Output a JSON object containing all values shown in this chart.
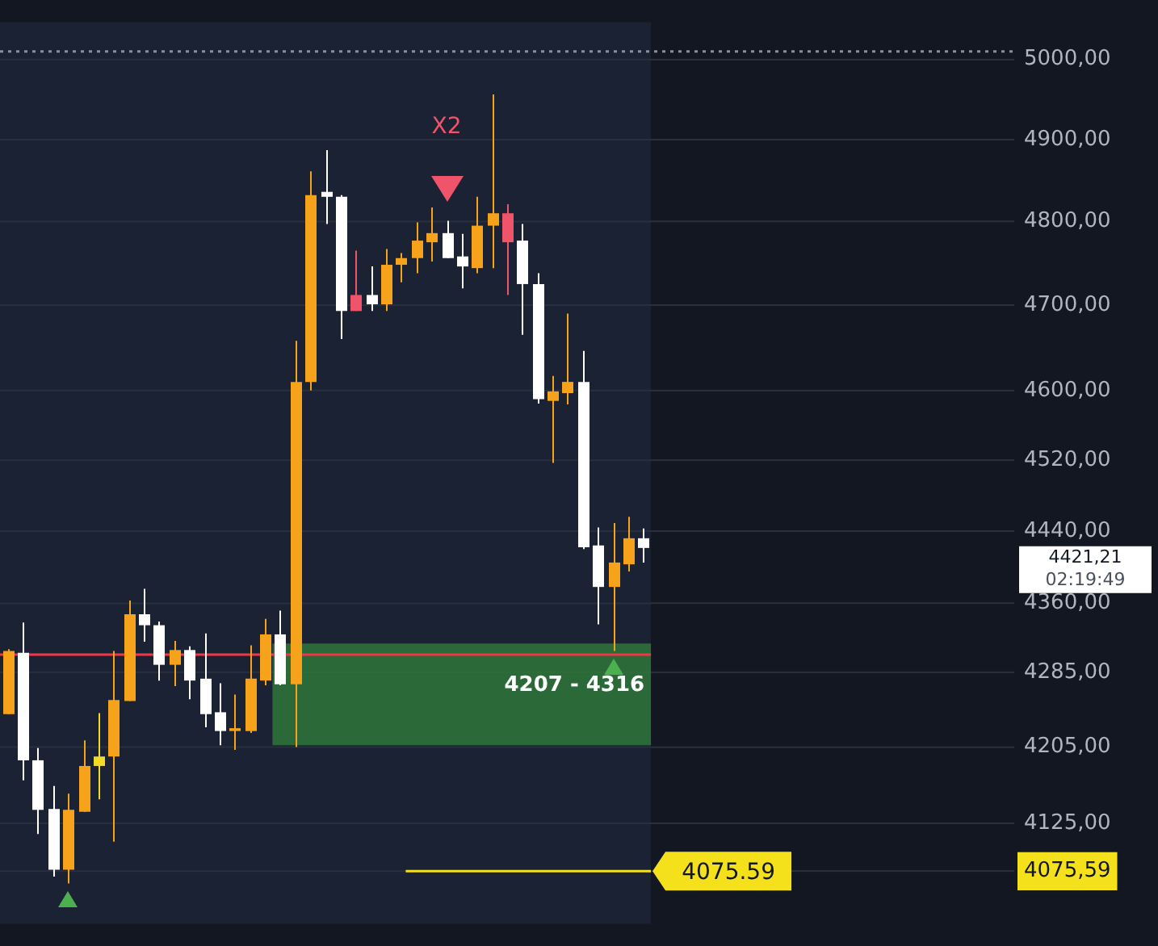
{
  "chart_data": {
    "type": "candlestick",
    "log": true,
    "grid": "y",
    "tick_labels": "y",
    "categories": [
      null,
      null,
      null,
      null,
      null,
      null,
      null,
      null,
      null,
      null,
      null,
      null,
      null,
      null,
      null,
      null,
      null,
      null,
      null,
      null,
      null,
      null,
      null,
      null,
      null,
      null,
      null,
      null,
      null,
      null,
      null,
      null,
      null,
      null,
      null,
      null,
      null,
      null,
      null,
      null,
      null,
      null,
      null,
      null,
      null,
      null,
      null,
      null,
      null,
      null,
      null,
      null,
      null,
      null,
      null,
      null,
      null,
      null,
      null,
      null,
      null,
      null,
      null,
      null,
      null,
      null,
      null
    ],
    "ohlc": [
      [
        4240,
        4310,
        4240,
        4308
      ],
      [
        4306,
        4339,
        4170,
        4191
      ],
      [
        4191,
        4204,
        4114,
        4139
      ],
      [
        4140,
        4164,
        4070,
        4077
      ],
      [
        4077,
        4156,
        4063,
        4139
      ],
      [
        4137,
        4212,
        4137,
        4185
      ],
      [
        4185,
        4241,
        4150,
        4195
      ],
      [
        4195,
        4308,
        4106,
        4255
      ],
      [
        4254,
        4363,
        4254,
        4348
      ],
      [
        4348,
        4376,
        4318,
        4336
      ],
      [
        4336,
        4340,
        4276,
        4293
      ],
      [
        4293,
        4319,
        4270,
        4309
      ],
      [
        4309,
        4313,
        4256,
        4276
      ],
      [
        4278,
        4327,
        4226,
        4240
      ],
      [
        4242,
        4273,
        4207,
        4222
      ],
      [
        4222,
        4261,
        4202,
        4225
      ],
      [
        4222,
        4314,
        4220,
        4278
      ],
      [
        4276,
        4343,
        4271,
        4326
      ],
      [
        4326,
        4352,
        4271,
        4272
      ],
      [
        4272,
        4658,
        4205,
        4610
      ],
      [
        4610,
        4861,
        4600,
        4832
      ],
      [
        4836,
        4887,
        4797,
        4830
      ],
      [
        4830,
        4832,
        4660,
        4693
      ],
      [
        4712,
        4765,
        4693,
        4693
      ],
      [
        4712,
        4746,
        4693,
        4701
      ],
      [
        4701,
        4767,
        4693,
        4748
      ],
      [
        4748,
        4762,
        4727,
        4756
      ],
      [
        4756,
        4799,
        4738,
        4777
      ],
      [
        4775,
        4817,
        4752,
        4786
      ],
      [
        4786,
        4801,
        4756,
        4756
      ],
      [
        4758,
        4785,
        4720,
        4746
      ],
      [
        4744,
        4830,
        4738,
        4795
      ],
      [
        4795,
        4956,
        4744,
        4810
      ],
      [
        4810,
        4821,
        4712,
        4775
      ],
      [
        4777,
        4797,
        4665,
        4725
      ],
      [
        4725,
        4738,
        4585,
        4590
      ],
      [
        4588,
        4617,
        4517,
        4599
      ],
      [
        4597,
        4690,
        4584,
        4610
      ],
      [
        4610,
        4646,
        4420,
        4422
      ],
      [
        4424,
        4444,
        4337,
        4378
      ],
      [
        4378,
        4449,
        4308,
        4405
      ],
      [
        4403,
        4456,
        4395,
        4432
      ],
      [
        4432,
        4443,
        4405,
        4421.21
      ],
      null,
      null,
      null,
      null,
      null,
      null,
      null,
      null,
      null,
      null,
      null,
      null,
      null,
      null,
      null,
      null,
      null,
      null,
      null,
      null,
      null,
      null,
      null,
      null
    ],
    "colors": [
      "#f7a21b",
      "#ffffff",
      "#ffffff",
      "#ffffff",
      "#f7a21b",
      "#f7a21b",
      "#f3d92a",
      "#f7a21b",
      "#f7a21b",
      "#ffffff",
      "#ffffff",
      "#f7a21b",
      "#ffffff",
      "#ffffff",
      "#ffffff",
      "#f7a21b",
      "#f7a21b",
      "#f7a21b",
      "#ffffff",
      "#f7a21b",
      "#f7a21b",
      "#ffffff",
      "#ffffff",
      "#f0546a",
      "#ffffff",
      "#f7a21b",
      "#f7a21b",
      "#f7a21b",
      "#f7a21b",
      "#ffffff",
      "#ffffff",
      "#f7a21b",
      "#f7a21b",
      "#f0546a",
      "#ffffff",
      "#ffffff",
      "#f7a21b",
      "#f7a21b",
      "#ffffff",
      "#ffffff",
      "#f7a21b",
      "#f7a21b",
      "#ffffff",
      null,
      null,
      null,
      null,
      null,
      null,
      null,
      null,
      null,
      null,
      null,
      null,
      null,
      null,
      null,
      null,
      null,
      null,
      null,
      null,
      null,
      null,
      null,
      null
    ],
    "ylim": [
      4022,
      5047
    ],
    "yticks": [
      {
        "value": 4075.59,
        "label": "4075,59"
      },
      {
        "value": 4125,
        "label": "4125,00"
      },
      {
        "value": 4205,
        "label": "4205,00"
      },
      {
        "value": 4285,
        "label": "4285,00"
      },
      {
        "value": 4360,
        "label": "4360,00"
      },
      {
        "value": 4440,
        "label": "4440,00"
      },
      {
        "value": 4520,
        "label": "4520,00"
      },
      {
        "value": 4600,
        "label": "4600,00"
      },
      {
        "value": 4700,
        "label": "4700,00"
      },
      {
        "value": 4800,
        "label": "4800,00"
      },
      {
        "value": 4900,
        "label": "4900,00"
      },
      {
        "value": 5000,
        "label": "5000,00"
      }
    ],
    "ref_lines": [
      {
        "axis": "y",
        "value": 4304,
        "color": "#f23645",
        "line_style": "solid"
      },
      {
        "axis": "y",
        "value": 4075.59,
        "label": "4075.59",
        "color": "#f5e11b",
        "line_style": "solid"
      },
      {
        "axis": "y",
        "value": 5010,
        "color": "#8a8f9c",
        "line_style": "dotted"
      }
    ],
    "bands": [
      {
        "axis": "y",
        "from": 4207,
        "to": 4316,
        "label": "4207 - 4316",
        "color": "#2f7d3a"
      }
    ],
    "annotations": [
      "X2",
      "4421,21",
      "02:19:49"
    ]
  }
}
